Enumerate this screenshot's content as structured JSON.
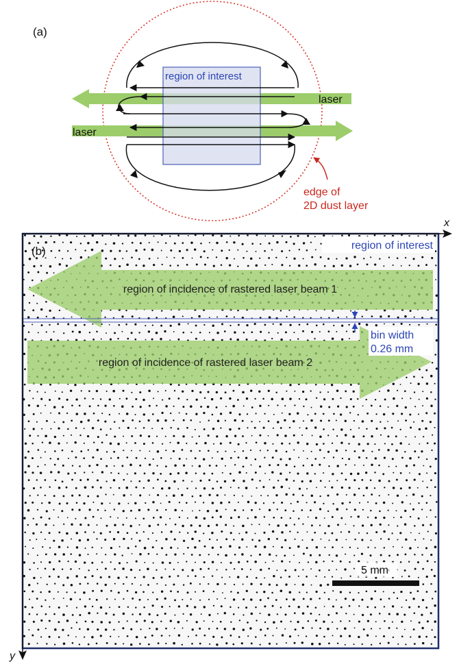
{
  "panel_a": {
    "label": "(a)",
    "roi_label": "region of interest",
    "laser_top_label": "laser",
    "laser_bottom_label": "laser",
    "edge_label_line1": "edge of",
    "edge_label_line2": "2D dust layer"
  },
  "panel_b": {
    "label": "(b)",
    "roi_label": "region of interest",
    "beam1_label": "region of incidence of rastered laser beam 1",
    "beam2_label": "region of incidence of rastered laser beam 2",
    "bin_label_line1": "bin width",
    "bin_label_line2": "0.26 mm",
    "scale_label": "5 mm",
    "axis_x": "x",
    "axis_y": "y"
  },
  "colors": {
    "laser_green": "#9ccd6a",
    "roi_fill": "#d6d9ee",
    "roi_stroke": "#4b5fb8",
    "dust_edge": "#d9342b",
    "text_blue": "#2b45b5",
    "text_red": "#c8281e",
    "frame": "#1e2d6b",
    "particle": "#111111"
  }
}
